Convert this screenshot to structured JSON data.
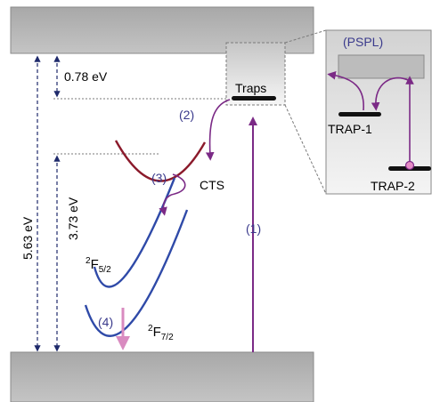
{
  "labels": {
    "energy_078": "0.78 eV",
    "energy_563": "5.63 eV",
    "energy_373": "3.73 eV",
    "traps": "Traps",
    "step_1": "(1)",
    "step_2": "(2)",
    "step_3": "(3)",
    "step_4": "(4)",
    "cts": "CTS",
    "level_f52_sup": "2",
    "level_f52_main": "F",
    "level_f52_sub": "5/2",
    "level_f72_sup": "2",
    "level_f72_main": "F",
    "level_f72_sub": "7/2"
  },
  "inset": {
    "title": "(PSPL)",
    "trap_1": "TRAP-1",
    "trap_2": "TRAP-2"
  },
  "colors": {
    "band": "#b4b4b4",
    "arrow_purple": "#7b2a86",
    "arrow_pink": "#d98bc0",
    "parabola_cts": "#8b1a2b",
    "parabola_f": "#2f4aa8",
    "label_blue": "#3a3a8c",
    "dashed": "#1f2a6b"
  }
}
